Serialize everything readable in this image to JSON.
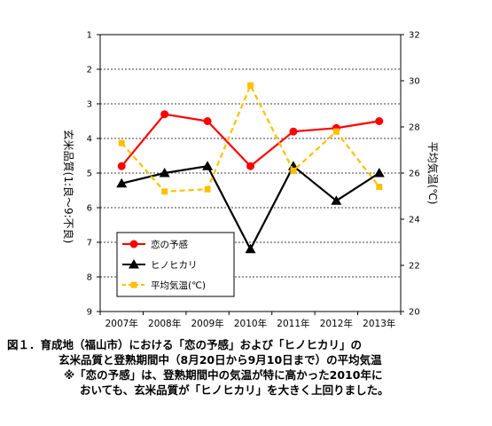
{
  "chart_data": {
    "type": "line",
    "categories": [
      "2007年",
      "2008年",
      "2009年",
      "2010年",
      "2011年",
      "2012年",
      "2013年"
    ],
    "ylabel_left": "玄米品質(1:良～9:不良)",
    "ylabel_right": "平均気温(℃)",
    "y_left": {
      "min": 1,
      "max": 9,
      "ticks": [
        "1",
        "2",
        "3",
        "4",
        "5",
        "6",
        "7",
        "8",
        "9"
      ],
      "inverted": true
    },
    "y_right": {
      "min": 20,
      "max": 32,
      "ticks": [
        "20",
        "22",
        "24",
        "26",
        "28",
        "30",
        "32"
      ]
    },
    "grid": "horizontal dashed",
    "legend_position": "bottom-left",
    "series": [
      {
        "name": "恋の予感",
        "axis": "left",
        "color": "#ff0000",
        "marker": "circle",
        "line": "solid",
        "values": [
          4.8,
          3.3,
          3.5,
          4.8,
          3.8,
          3.7,
          3.5
        ]
      },
      {
        "name": "ヒノヒカリ",
        "axis": "left",
        "color": "#000000",
        "marker": "triangle",
        "line": "solid",
        "values": [
          5.3,
          5.0,
          4.8,
          7.2,
          4.8,
          5.8,
          5.0
        ]
      },
      {
        "name": "平均気温(℃)",
        "axis": "right",
        "color": "#ffc000",
        "marker": "square",
        "line": "dashed",
        "values": [
          27.3,
          25.2,
          25.3,
          29.8,
          26.1,
          27.8,
          25.4
        ]
      }
    ]
  },
  "caption": {
    "line1": "図１．育成地（福山市）における「恋の予感」および「ヒノヒカリ」の",
    "line2": "玄米品質と登熟期間中（8月20日から9月10日まで）の平均気温",
    "line3": "※「恋の予感」は、登熟期間中の気温が特に高かった2010年に",
    "line4": "おいても、玄米品質が「ヒノヒカリ」を大きく上回りました。"
  }
}
